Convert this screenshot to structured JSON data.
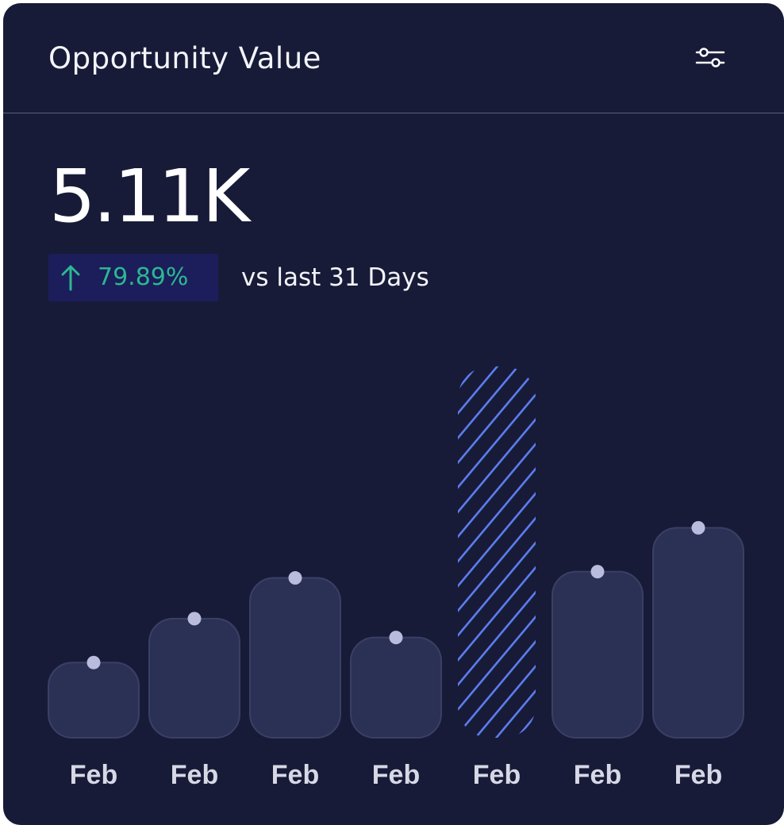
{
  "card": {
    "title": "Opportunity Value",
    "filter_icon": "sliders-icon",
    "headline_value": "5.11K",
    "change": {
      "direction_icon": "arrow-up-icon",
      "value": "79.89%",
      "color": "#2cb792"
    },
    "comparison_text": "vs last 31 Days"
  },
  "colors": {
    "background": "#171b37",
    "bar_fill": "#2b3155",
    "marker": "#b9bcdc",
    "highlight_stripe_start": "#7c6cf0",
    "highlight_stripe_end": "#3d8ff0"
  },
  "chart_data": {
    "type": "bar",
    "categories": [
      "Feb",
      "Feb",
      "Feb",
      "Feb",
      "Feb",
      "Feb",
      "Feb"
    ],
    "values": [
      96,
      152,
      204,
      128,
      474,
      212,
      268
    ],
    "highlight_index": 4,
    "ylim": [
      0,
      480
    ],
    "grid": false,
    "legend": "none",
    "title": "",
    "xlabel": "",
    "ylabel": ""
  }
}
